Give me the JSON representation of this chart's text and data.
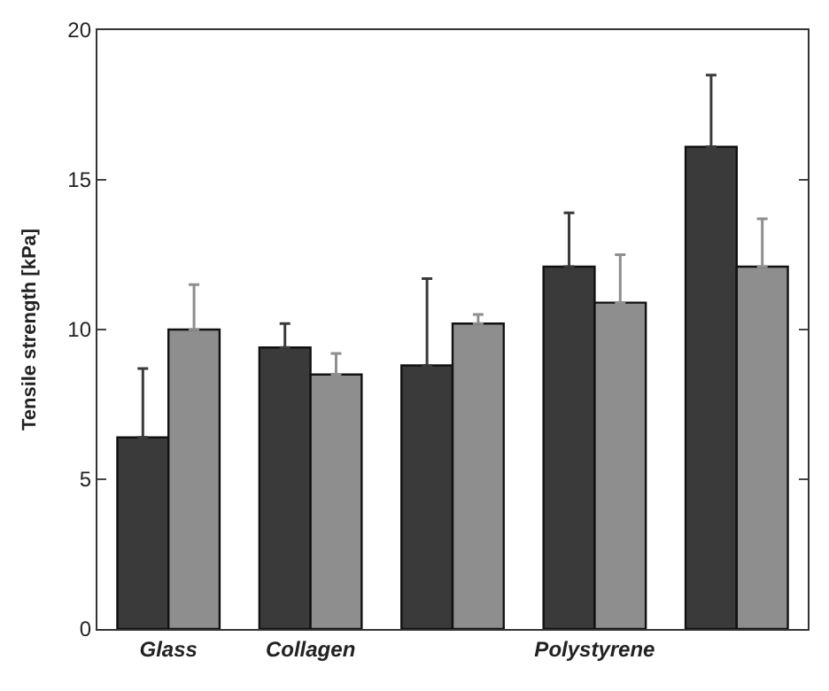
{
  "chart_data": {
    "type": "bar",
    "ylabel": "Tensile strength [kPa]",
    "categories": [
      "Glass",
      "Collagen",
      null,
      "Polystyrene",
      null
    ],
    "series": [
      {
        "color": "#3a3a3a",
        "values": [
          6.4,
          9.4,
          8.8,
          12.1,
          16.1
        ],
        "errors": [
          [
            6.4,
            8.7
          ],
          [
            9.4,
            10.2
          ],
          [
            8.8,
            11.7
          ],
          [
            12.1,
            13.9
          ],
          [
            16.1,
            18.5
          ]
        ]
      },
      {
        "color": "#8e8e8e",
        "values": [
          10.0,
          8.5,
          10.2,
          10.9,
          12.1
        ],
        "errors": [
          [
            10.0,
            11.5
          ],
          [
            8.5,
            9.2
          ],
          [
            10.2,
            10.5
          ],
          [
            10.9,
            12.5
          ],
          [
            12.1,
            13.7
          ]
        ]
      }
    ],
    "ylim": [
      0,
      20
    ],
    "yticks": [
      0,
      5,
      10,
      15,
      20
    ]
  }
}
